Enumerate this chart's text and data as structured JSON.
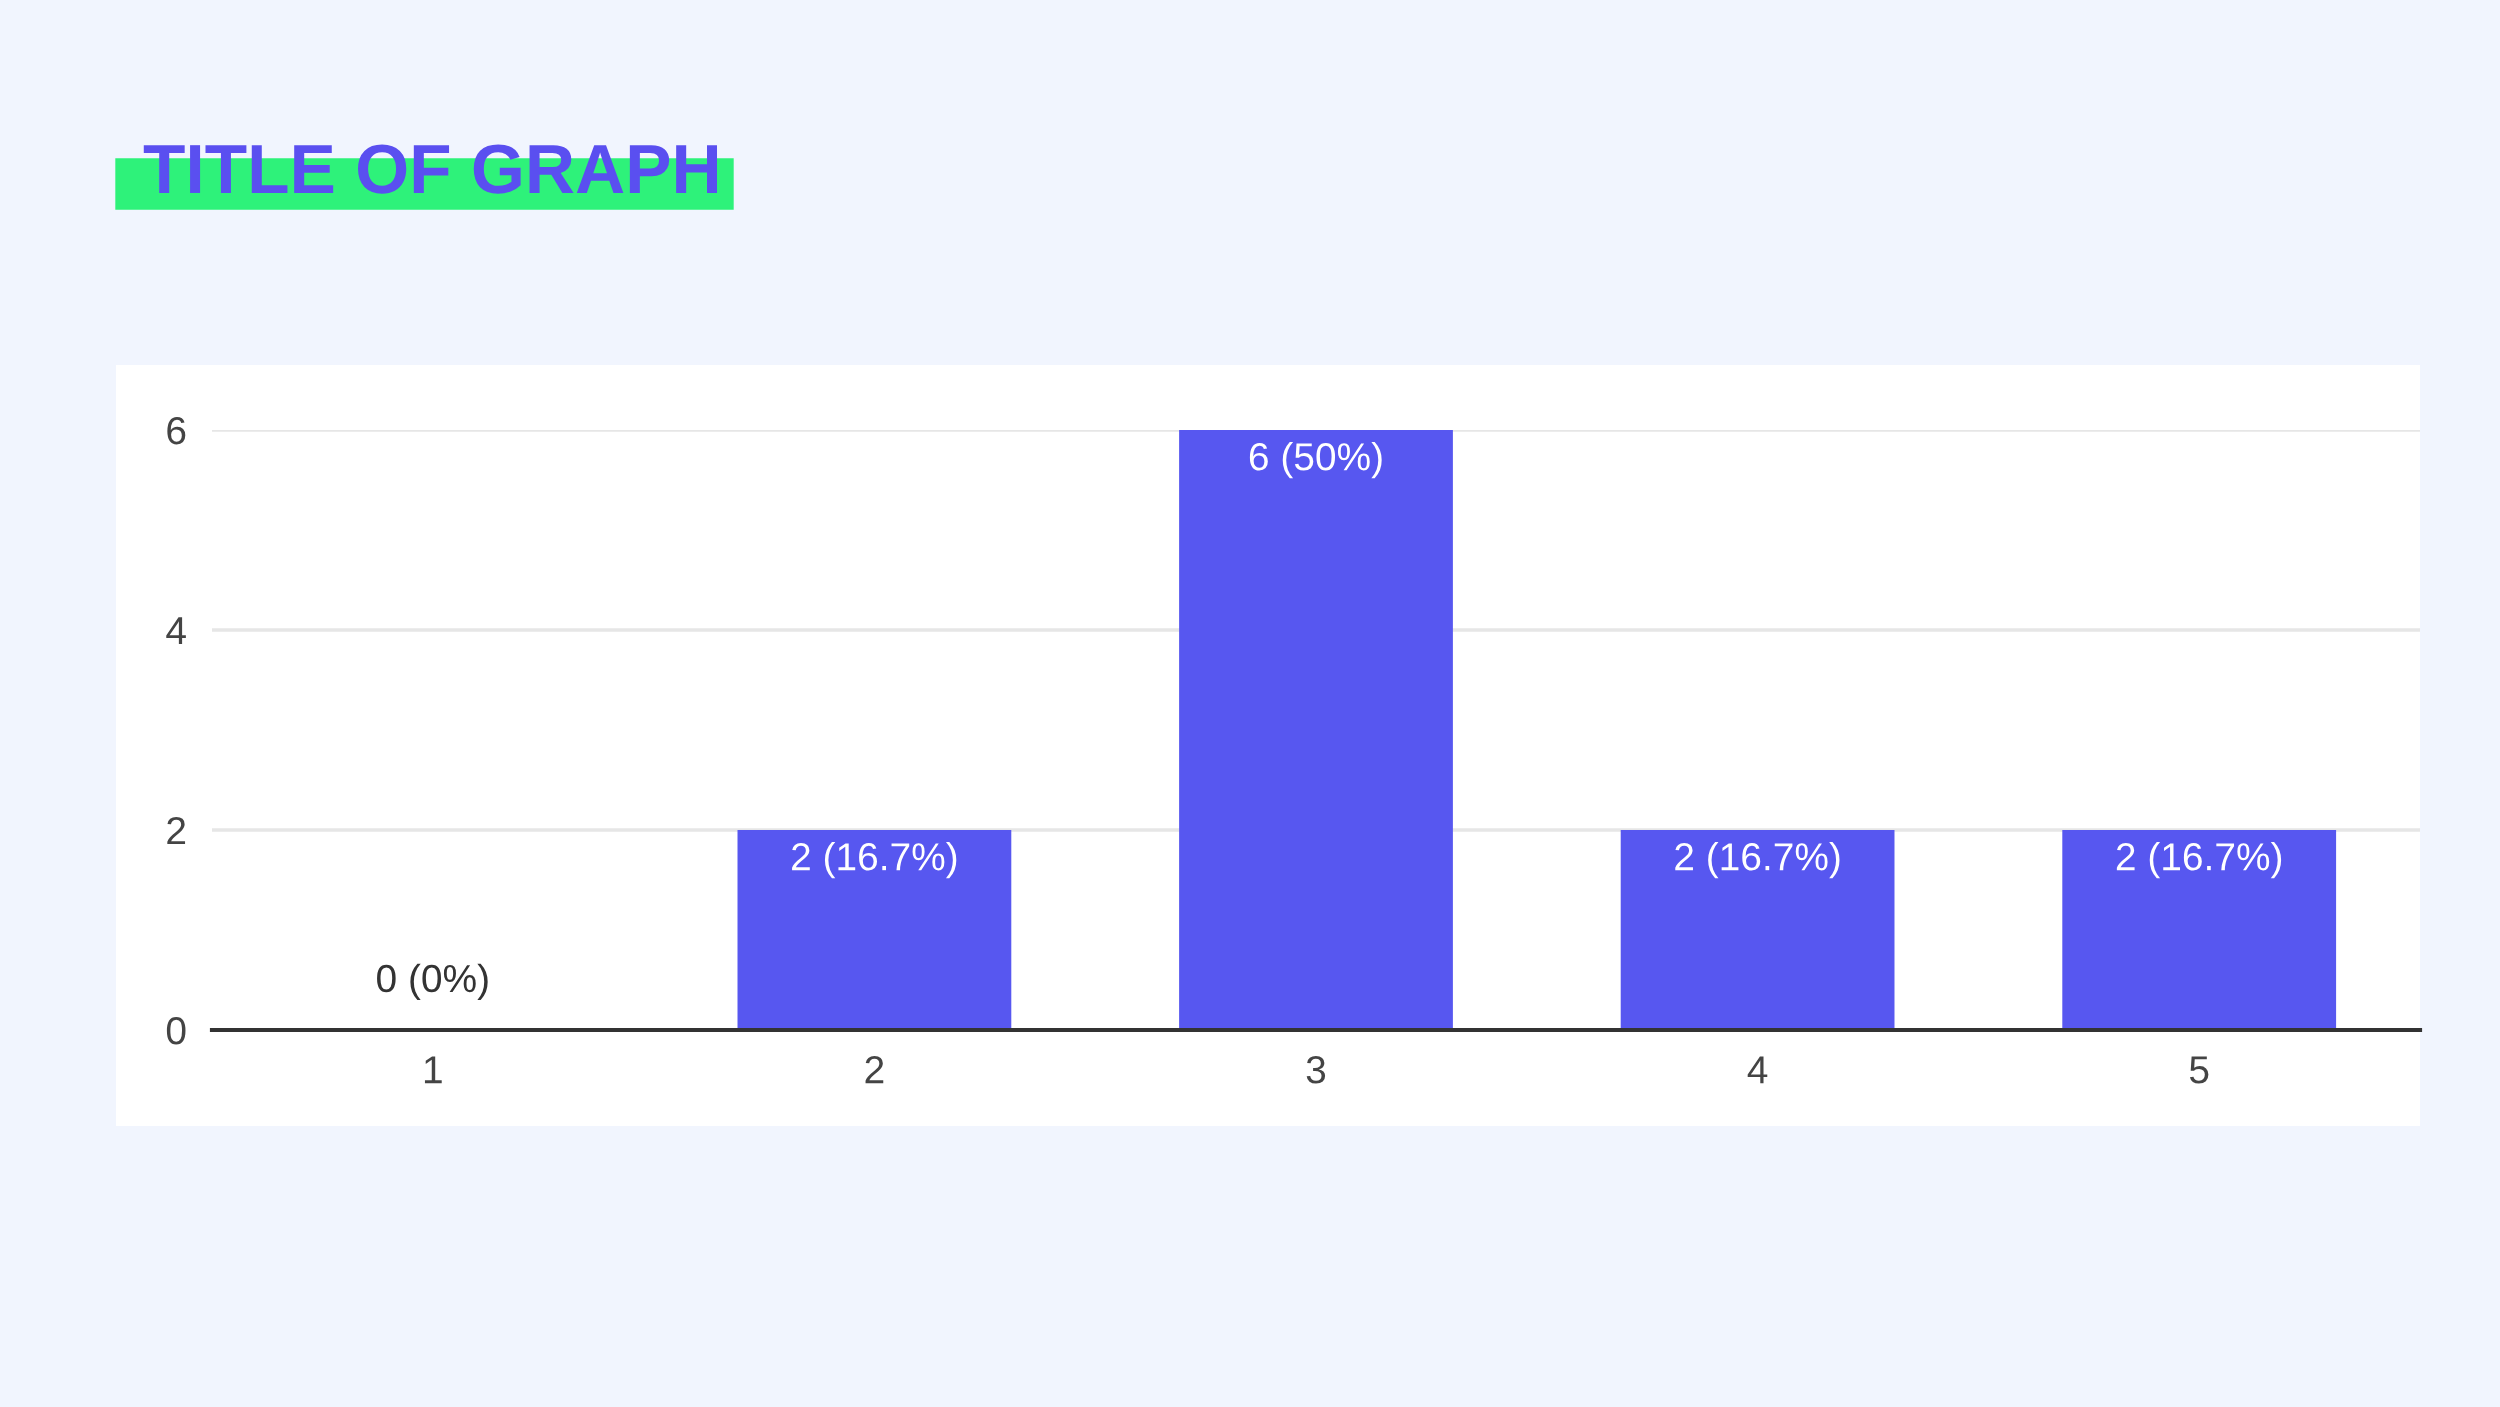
{
  "chart_data": {
    "type": "bar",
    "title": "TITLE OF GRAPH",
    "categories": [
      "1",
      "2",
      "3",
      "4",
      "5"
    ],
    "values": [
      0,
      2,
      6,
      2,
      2
    ],
    "value_labels": [
      "0 (0%)",
      "2 (16.7%)",
      "6 (50%)",
      "2 (16.7%)",
      "2 (16.7%)"
    ],
    "color": "#5757f0",
    "ylim": [
      0,
      6
    ],
    "yticks": [
      0,
      2,
      4,
      6
    ],
    "grid": "y"
  }
}
